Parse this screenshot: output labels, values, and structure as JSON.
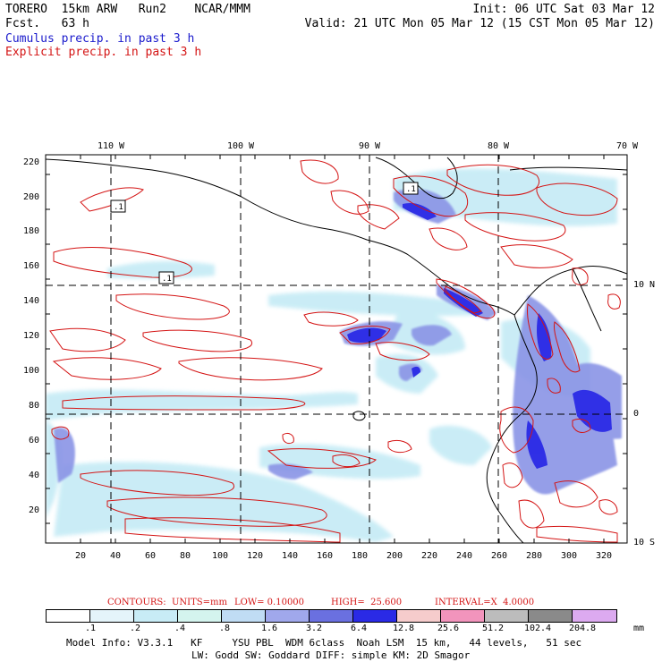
{
  "header": {
    "model": "TORERO  15km ARW   Run2    NCAR/MMM",
    "forecast": "Fcst.   63 h",
    "init": "Init: 06 UTC Sat 03 Mar 12",
    "valid": "Valid: 21 UTC Mon 05 Mar 12 (15 CST Mon 05 Mar 12)",
    "line_blue": "Cumulus precip. in past 3 h",
    "line_red": "Explicit precip. in past 3 h"
  },
  "axes": {
    "top_lon": [
      "110 W",
      "100 W",
      "90 W",
      "80 W",
      "70 W"
    ],
    "right_lat": [
      "10 N",
      "0",
      "10 S"
    ],
    "x_ticks": [
      "20",
      "40",
      "60",
      "80",
      "100",
      "120",
      "140",
      "160",
      "180",
      "200",
      "220",
      "240",
      "260",
      "280",
      "300",
      "320"
    ],
    "y_ticks": [
      "220",
      "200",
      "180",
      "160",
      "140",
      "120",
      "100",
      "80",
      "60",
      "40",
      "20"
    ]
  },
  "map_labels": [
    ".1",
    ".1",
    ".1"
  ],
  "contours": {
    "label": "CONTOURS:  UNITS=mm",
    "low": "LOW= 0.10000",
    "high": "HIGH=  25.600",
    "interval": "INTERVAL=X  4.0000"
  },
  "legend": {
    "colors": [
      "#ffffff",
      "#e4f4fa",
      "#c8ecf6",
      "#d4f4ee",
      "#c0dcf4",
      "#a0a8ec",
      "#6a70e0",
      "#2a2ae6",
      "#f6cccc",
      "#f294bc",
      "#bcbcbc",
      "#8a8a8a",
      "#dcaaf0"
    ],
    "labels": [
      ".1",
      ".2",
      ".4",
      ".8",
      "1.6",
      "3.2",
      "6.4",
      "12.8",
      "25.6",
      "51.2",
      "102.4",
      "204.8"
    ],
    "unit": "mm"
  },
  "footer": {
    "line1": "Model Info: V3.3.1   KF     YSU PBL  WDM 6class  Noah LSM  15 km,   44 levels,   51 sec",
    "line2": "LW: Godd SW: Goddard DIFF: simple KM: 2D Smagor"
  }
}
